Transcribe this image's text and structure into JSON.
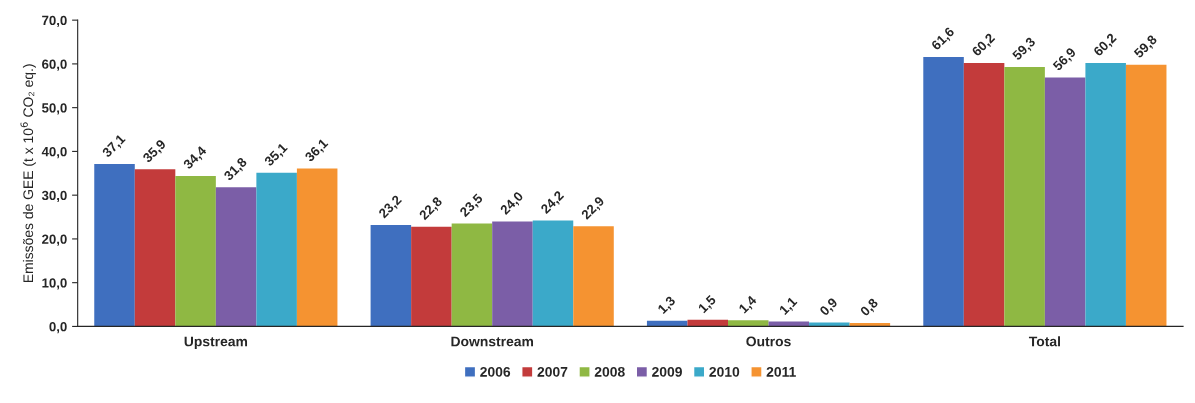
{
  "chart_data": {
    "type": "bar",
    "ylabel": "Emissões de GEE (t x 10$^{6}$ CO₂ eq.)",
    "categories": [
      "Upstream",
      "Downstream",
      "Outros",
      "Total"
    ],
    "series": [
      {
        "name": "2006",
        "color": "#3f6fbf",
        "values": [
          37.1,
          23.2,
          1.3,
          61.6
        ],
        "value_labels": [
          "37,1",
          "23,2",
          "1,3",
          "61,6"
        ]
      },
      {
        "name": "2007",
        "color": "#c33b3b",
        "values": [
          35.9,
          22.8,
          1.5,
          60.2
        ],
        "value_labels": [
          "35,9",
          "22,8",
          "1,5",
          "60,2"
        ]
      },
      {
        "name": "2008",
        "color": "#8fb843",
        "values": [
          34.4,
          23.5,
          1.4,
          59.3
        ],
        "value_labels": [
          "34,4",
          "23,5",
          "1,4",
          "59,3"
        ]
      },
      {
        "name": "2009",
        "color": "#7b5ea7",
        "values": [
          31.8,
          24.0,
          1.1,
          56.9
        ],
        "value_labels": [
          "31,8",
          "24,0",
          "1,1",
          "56,9"
        ]
      },
      {
        "name": "2010",
        "color": "#3ba9c9",
        "values": [
          35.1,
          24.2,
          0.9,
          60.2
        ],
        "value_labels": [
          "35,1",
          "24,2",
          "0,9",
          "60,2"
        ]
      },
      {
        "name": "2011",
        "color": "#f59331",
        "values": [
          36.1,
          22.9,
          0.8,
          59.8
        ],
        "value_labels": [
          "36,1",
          "22,9",
          "0,8",
          "59,8"
        ]
      }
    ],
    "ylim": [
      0,
      70
    ],
    "yticks": [
      {
        "value": 0,
        "label": "0,0"
      },
      {
        "value": 10,
        "label": "10,0"
      },
      {
        "value": 20,
        "label": "20,0"
      },
      {
        "value": 30,
        "label": "30,0"
      },
      {
        "value": 40,
        "label": "40,0"
      },
      {
        "value": 50,
        "label": "50,0"
      },
      {
        "value": 60,
        "label": "60,0"
      },
      {
        "value": 70,
        "label": "70,0"
      }
    ],
    "legend": "bottom",
    "grid": false
  }
}
